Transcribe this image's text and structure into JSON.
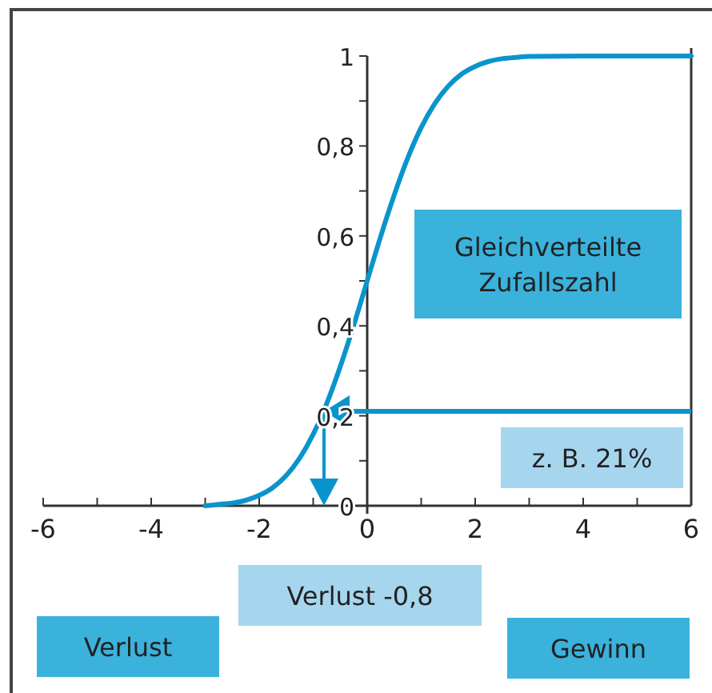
{
  "chart_data": {
    "type": "line",
    "x": [
      -3,
      -2.75,
      -2.5,
      -2.25,
      -2,
      -1.75,
      -1.5,
      -1.25,
      -1,
      -0.75,
      -0.5,
      -0.25,
      0,
      0.25,
      0.5,
      0.75,
      1,
      1.25,
      1.5,
      1.75,
      2,
      2.25,
      2.5,
      2.75,
      3,
      4,
      5,
      6
    ],
    "series": [
      {
        "color": "#0a94cc",
        "values": [
          0,
          0.003,
          0.006,
          0.012,
          0.023,
          0.04,
          0.067,
          0.106,
          0.159,
          0.227,
          0.309,
          0.401,
          0.5,
          0.599,
          0.691,
          0.773,
          0.841,
          0.894,
          0.933,
          0.96,
          0.977,
          0.988,
          0.994,
          0.997,
          0.999,
          1,
          1,
          1
        ]
      }
    ],
    "xlim": [
      -6,
      6
    ],
    "ylim": [
      0,
      1
    ],
    "xticks": [
      -6,
      {
        "value": -5,
        "label": null
      },
      -4,
      {
        "value": -3,
        "label": null
      },
      -2,
      {
        "value": -1,
        "label": null
      },
      0,
      {
        "value": 1,
        "label": null
      },
      2,
      {
        "value": 3,
        "label": null
      },
      4,
      {
        "value": 5,
        "label": null
      },
      6
    ],
    "yticks": [
      0,
      {
        "value": 0.1,
        "label": null
      },
      {
        "value": 0.2,
        "label": "0,2"
      },
      {
        "value": 0.3,
        "label": null
      },
      {
        "value": 0.4,
        "label": "0,4"
      },
      {
        "value": 0.5,
        "label": null
      },
      {
        "value": 0.6,
        "label": "0,6"
      },
      {
        "value": 0.7,
        "label": null
      },
      {
        "value": 0.8,
        "label": "0,8"
      },
      {
        "value": 0.9,
        "label": null
      },
      1
    ],
    "ref_lines": [
      {
        "axis": "y",
        "value": 0.21,
        "color": "#0a94cc"
      },
      {
        "axis": "x",
        "value": -0.8,
        "color": "#0a94cc"
      }
    ],
    "annotations": [
      "Gleichverteilte Zufallszahl",
      "z. B. 21%",
      "Verlust -0,8",
      "Verlust",
      "Gewinn"
    ],
    "grid": false
  }
}
